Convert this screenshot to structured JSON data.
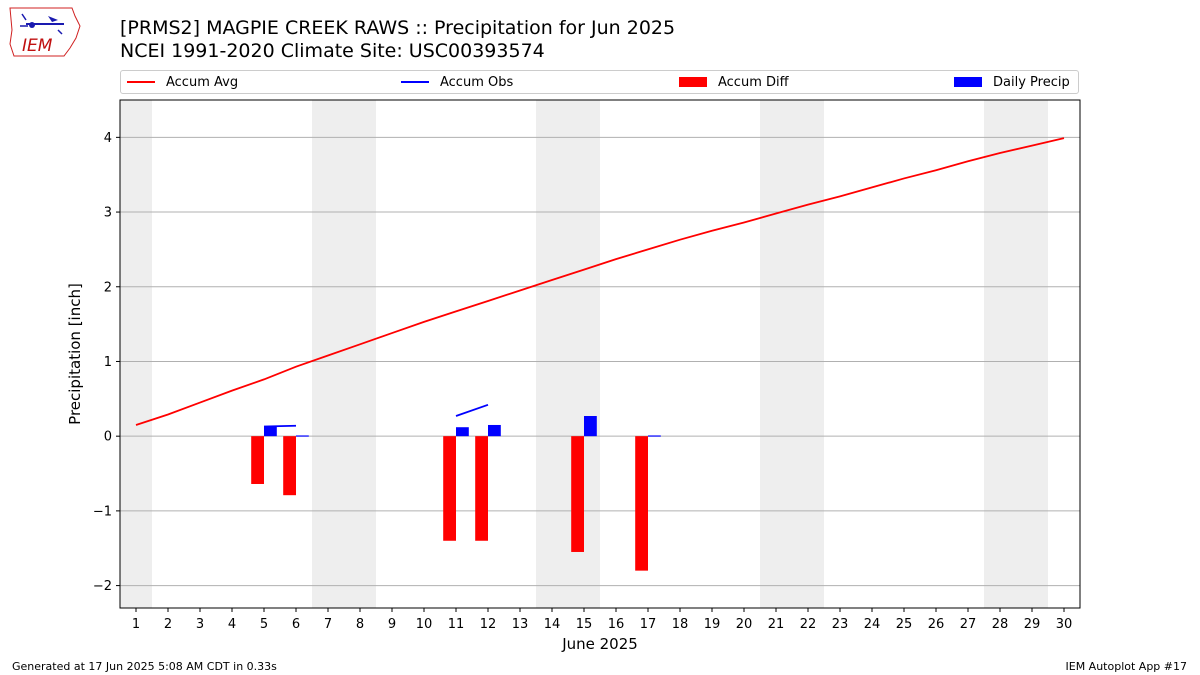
{
  "header": {
    "title_line1": "[PRMS2] MAGPIE CREEK RAWS :: Precipitation for Jun 2025",
    "title_line2": "NCEI 1991-2020 Climate Site: USC00393574"
  },
  "logo": {
    "text": "IEM",
    "icon": "iem-iowa-logo-icon"
  },
  "footer": {
    "generated": "Generated at 17 Jun 2025 5:08 AM CDT in 0.33s",
    "app": "IEM Autoplot App #17"
  },
  "chart_data": {
    "type": "bar",
    "title": "[PRMS2] MAGPIE CREEK RAWS :: Precipitation for Jun 2025",
    "subtitle": "NCEI 1991-2020 Climate Site: USC00393574",
    "xlabel": "June 2025",
    "ylabel": "Precipitation [inch]",
    "xlim": [
      0.5,
      30.5
    ],
    "ylim": [
      -2.3,
      4.5
    ],
    "yticks": [
      -2,
      -1,
      0,
      1,
      2,
      3,
      4
    ],
    "ytick_labels": [
      "−2",
      "−1",
      "0",
      "1",
      "2",
      "3",
      "4"
    ],
    "xticks": [
      1,
      2,
      3,
      4,
      5,
      6,
      7,
      8,
      9,
      10,
      11,
      12,
      13,
      14,
      15,
      16,
      17,
      18,
      19,
      20,
      21,
      22,
      23,
      24,
      25,
      26,
      27,
      28,
      29,
      30
    ],
    "grid": "horizontal",
    "legend_placement": "top",
    "weekend_shading": [
      [
        0.5,
        1.5
      ],
      [
        6.5,
        8.5
      ],
      [
        13.5,
        15.5
      ],
      [
        20.5,
        22.5
      ],
      [
        27.5,
        29.5
      ]
    ],
    "series": [
      {
        "name": "Accum Avg",
        "kind": "line",
        "color": "#ff0000",
        "x": [
          1,
          2,
          3,
          4,
          5,
          6,
          7,
          8,
          9,
          10,
          11,
          12,
          13,
          14,
          15,
          16,
          17,
          18,
          19,
          20,
          21,
          22,
          23,
          24,
          25,
          26,
          27,
          28,
          29,
          30
        ],
        "values": [
          0.15,
          0.29,
          0.45,
          0.61,
          0.76,
          0.93,
          1.08,
          1.23,
          1.38,
          1.53,
          1.67,
          1.81,
          1.95,
          2.09,
          2.23,
          2.37,
          2.5,
          2.63,
          2.75,
          2.86,
          2.98,
          3.1,
          3.21,
          3.33,
          3.45,
          3.56,
          3.68,
          3.79,
          3.89,
          3.99
        ]
      },
      {
        "name": "Accum Obs",
        "kind": "line",
        "color": "#0000ff",
        "segments": [
          {
            "x": [
              5,
              6
            ],
            "values": [
              0.13,
              0.14
            ]
          },
          {
            "x": [
              11,
              12
            ],
            "values": [
              0.27,
              0.42
            ]
          }
        ]
      },
      {
        "name": "Accum Diff",
        "kind": "bar",
        "color": "#ff0000",
        "x": [
          5,
          6,
          11,
          12,
          15,
          17
        ],
        "values": [
          -0.64,
          -0.79,
          -1.4,
          -1.4,
          -1.55,
          -1.8
        ]
      },
      {
        "name": "Daily Precip",
        "kind": "bar",
        "color": "#0000ff",
        "x": [
          5,
          6,
          11,
          12,
          15,
          17
        ],
        "values": [
          0.13,
          0.01,
          0.12,
          0.15,
          0.27,
          0.01
        ]
      }
    ]
  }
}
